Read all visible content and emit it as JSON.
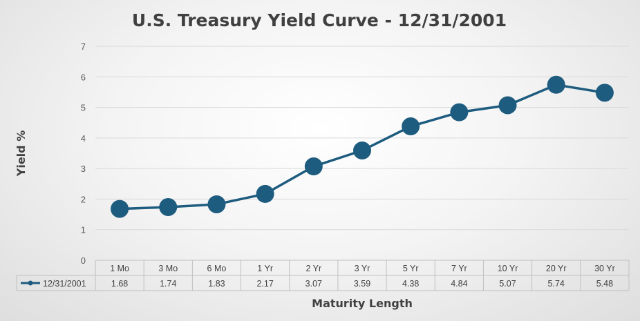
{
  "chart_data": {
    "type": "line",
    "title": "U.S. Treasury Yield Curve - 12/31/2001",
    "xlabel": "Maturity Length",
    "ylabel": "Yield %",
    "categories": [
      "1 Mo",
      "3 Mo",
      "6 Mo",
      "1 Yr",
      "2 Yr",
      "3 Yr",
      "5 Yr",
      "7 Yr",
      "10 Yr",
      "20 Yr",
      "30 Yr"
    ],
    "series": [
      {
        "name": "12/31/2001",
        "values": [
          1.68,
          1.74,
          1.83,
          2.17,
          3.07,
          3.59,
          4.38,
          4.84,
          5.07,
          5.74,
          5.48
        ],
        "value_labels": [
          "1.68",
          "1.74",
          "1.83",
          "2.17",
          "3.07",
          "3.59",
          "4.38",
          "4.84",
          "5.07",
          "5.74",
          "5.48"
        ]
      }
    ],
    "ylim": [
      0,
      7
    ],
    "yticks": [
      "0",
      "1",
      "2",
      "3",
      "4",
      "5",
      "6",
      "7"
    ],
    "grid": true,
    "legend": "data-table",
    "colors": {
      "series": "#1d5b7f",
      "grid": "#d9d9d9",
      "table_border": "#bfbfbf"
    }
  }
}
